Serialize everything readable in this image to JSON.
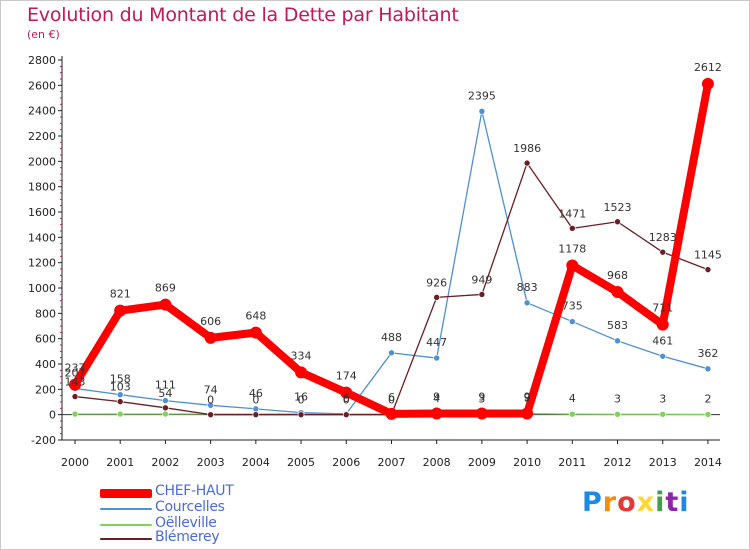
{
  "header": {
    "title": "Evolution du Montant de la Dette par Habitant",
    "subtitle": "(en €)"
  },
  "chart_data": {
    "type": "line",
    "title": "Evolution du Montant de la Dette par Habitant",
    "subtitle": "(en €)",
    "xlabel": "",
    "ylabel": "",
    "categories": [
      "2000",
      "2001",
      "2002",
      "2003",
      "2004",
      "2005",
      "2006",
      "2007",
      "2008",
      "2009",
      "2010",
      "2011",
      "2012",
      "2013",
      "2014"
    ],
    "y_ticks": [
      "-200",
      "0",
      "200",
      "400",
      "600",
      "800",
      "1000",
      "1200",
      "1400",
      "1600",
      "1800",
      "2000",
      "2200",
      "2400",
      "2600",
      "2800"
    ],
    "ylim": [
      -200,
      2800
    ],
    "grid": false,
    "legend_position": "bottom-left",
    "series": [
      {
        "name": "CHEF-HAUT",
        "color": "#ff0000",
        "values": [
          237,
          821,
          869,
          606,
          648,
          334,
          174,
          6,
          9,
          9,
          9,
          1178,
          968,
          711,
          2612
        ],
        "labels": [
          "237",
          "821",
          "869",
          "606",
          "648",
          "334",
          "174",
          "6",
          "9",
          "9",
          "9",
          "1178",
          "968",
          "711",
          "2612"
        ]
      },
      {
        "name": "Courcelles",
        "color": "#4f8fd6",
        "values": [
          207,
          158,
          111,
          74,
          46,
          16,
          6,
          488,
          447,
          2395,
          883,
          735,
          583,
          461,
          362
        ],
        "labels": [
          "207",
          "158",
          "111",
          "74",
          "46",
          "16",
          "6",
          "488",
          "447",
          "2395",
          "883",
          "735",
          "583",
          "461",
          "362"
        ]
      },
      {
        "name": "Oëlleville",
        "color": "#7fd35a",
        "values": [
          5,
          5,
          5,
          5,
          5,
          5,
          5,
          5,
          4,
          3,
          9,
          4,
          3,
          3,
          2
        ],
        "labels": [
          "",
          "",
          "",
          "",
          "",
          "",
          "",
          "",
          "4",
          "3",
          "9",
          "4",
          "3",
          "3",
          "2"
        ]
      },
      {
        "name": "Blémerey",
        "color": "#6b1e24",
        "values": [
          143,
          103,
          54,
          0,
          0,
          0,
          0,
          0,
          926,
          949,
          1986,
          1471,
          1523,
          1283,
          1145
        ],
        "labels": [
          "143",
          "103",
          "54",
          "0",
          "0",
          "0",
          "0",
          "0",
          "926",
          "949",
          "1986",
          "1471",
          "1523",
          "1283",
          "1145"
        ]
      }
    ]
  },
  "legend": {
    "items": [
      {
        "name": "CHEF-HAUT",
        "color": "#ff0000"
      },
      {
        "name": "Courcelles",
        "color": "#4f8fd6"
      },
      {
        "name": "Oëlleville",
        "color": "#7fd35a"
      },
      {
        "name": "Blémerey",
        "color": "#6b1e24"
      }
    ]
  },
  "brand": {
    "letters": [
      "P",
      "r",
      "o",
      "x",
      "i",
      "t",
      "i"
    ],
    "colors": [
      "#1e88e5",
      "#fb8c00",
      "#e53935",
      "#fdd835",
      "#43a047",
      "#8e24aa",
      "#1e88e5"
    ]
  }
}
